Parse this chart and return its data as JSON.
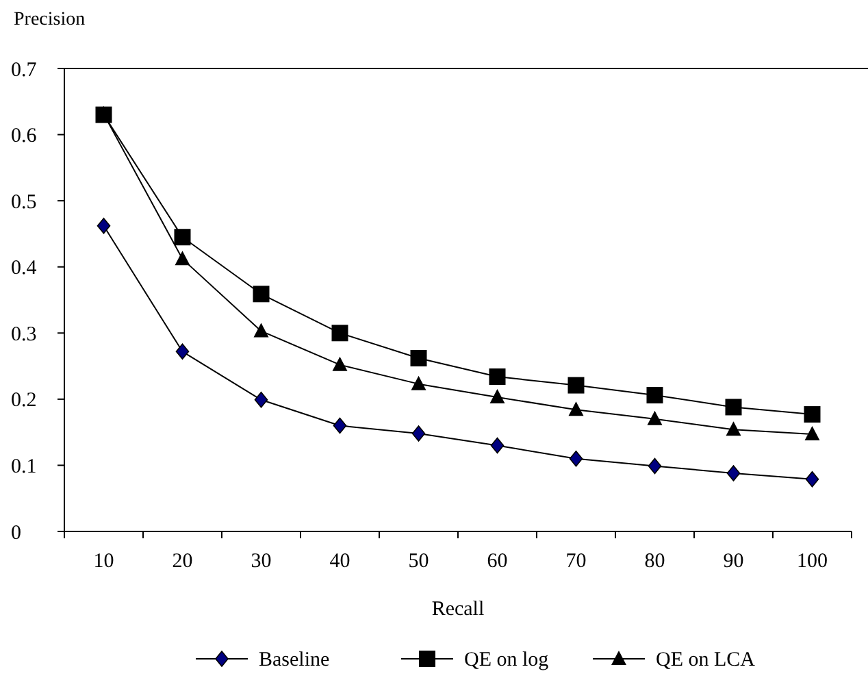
{
  "chart_data": {
    "type": "line",
    "ylabel": "Precision",
    "xlabel": "Recall",
    "categories": [
      "10",
      "20",
      "30",
      "40",
      "50",
      "60",
      "70",
      "80",
      "90",
      "100"
    ],
    "series": [
      {
        "name": "Baseline",
        "color": "#000080",
        "marker": "diamond",
        "values": [
          0.462,
          0.272,
          0.199,
          0.16,
          0.148,
          0.13,
          0.11,
          0.099,
          0.088,
          0.079
        ]
      },
      {
        "name": "QE on log",
        "color": "#000000",
        "marker": "square",
        "values": [
          0.63,
          0.445,
          0.359,
          0.3,
          0.262,
          0.234,
          0.221,
          0.206,
          0.188,
          0.177
        ]
      },
      {
        "name": "QE on LCA",
        "color": "#000000",
        "marker": "triangle",
        "values": [
          0.631,
          0.412,
          0.303,
          0.252,
          0.223,
          0.203,
          0.184,
          0.17,
          0.154,
          0.147
        ]
      }
    ],
    "ylim": [
      0,
      0.7
    ],
    "yticks": [
      0,
      0.1,
      0.2,
      0.3,
      0.4,
      0.5,
      0.6,
      0.7
    ],
    "grid": false,
    "legend": "bottom"
  }
}
